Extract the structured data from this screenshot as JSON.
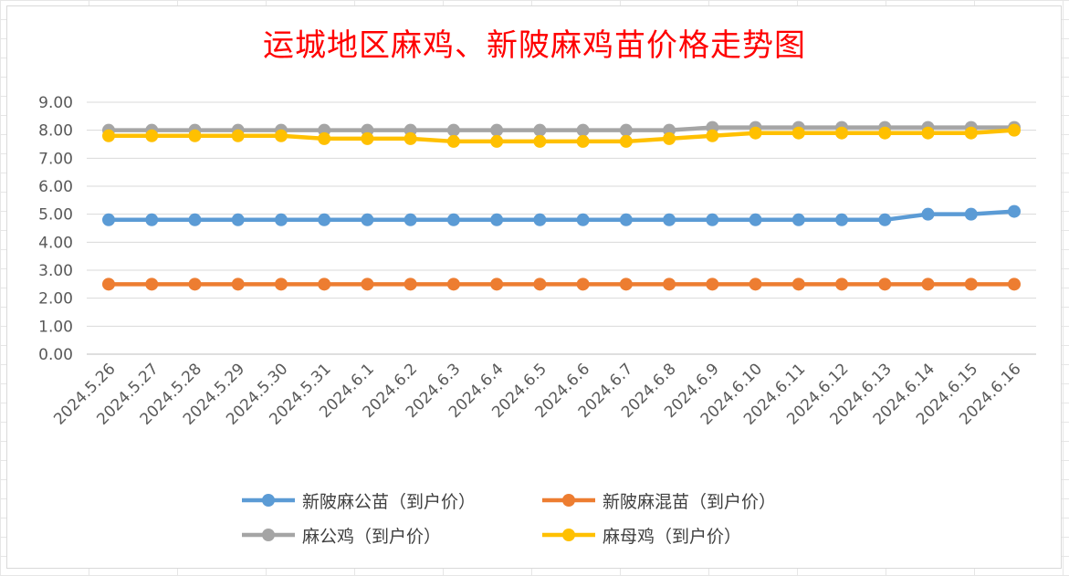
{
  "chart_data": {
    "type": "line",
    "title": "运城地区麻鸡、新陂麻鸡苗价格走势图",
    "xlabel": "",
    "ylabel": "",
    "ylim": [
      0,
      9
    ],
    "yticks": [
      "0.00",
      "1.00",
      "2.00",
      "3.00",
      "4.00",
      "5.00",
      "6.00",
      "7.00",
      "8.00",
      "9.00"
    ],
    "grid": true,
    "legend_position": "bottom",
    "categories": [
      "2024.5.26",
      "2024.5.27",
      "2024.5.28",
      "2024.5.29",
      "2024.5.30",
      "2024.5.31",
      "2024.6.1",
      "2024.6.2",
      "2024.6.3",
      "2024.6.4",
      "2024.6.5",
      "2024.6.6",
      "2024.6.7",
      "2024.6.8",
      "2024.6.9",
      "2024.6.10",
      "2024.6.11",
      "2024.6.12",
      "2024.6.13",
      "2024.6.14",
      "2024.6.15",
      "2024.6.16"
    ],
    "series": [
      {
        "name": "新陂麻公苗（到户价）",
        "color": "#5b9bd5",
        "values": [
          4.8,
          4.8,
          4.8,
          4.8,
          4.8,
          4.8,
          4.8,
          4.8,
          4.8,
          4.8,
          4.8,
          4.8,
          4.8,
          4.8,
          4.8,
          4.8,
          4.8,
          4.8,
          4.8,
          5.0,
          5.0,
          5.1
        ]
      },
      {
        "name": "新陂麻混苗（到户价）",
        "color": "#ed7d31",
        "values": [
          2.5,
          2.5,
          2.5,
          2.5,
          2.5,
          2.5,
          2.5,
          2.5,
          2.5,
          2.5,
          2.5,
          2.5,
          2.5,
          2.5,
          2.5,
          2.5,
          2.5,
          2.5,
          2.5,
          2.5,
          2.5,
          2.5
        ]
      },
      {
        "name": "麻公鸡（到户价）",
        "color": "#a5a5a5",
        "values": [
          8.0,
          8.0,
          8.0,
          8.0,
          8.0,
          8.0,
          8.0,
          8.0,
          8.0,
          8.0,
          8.0,
          8.0,
          8.0,
          8.0,
          8.1,
          8.1,
          8.1,
          8.1,
          8.1,
          8.1,
          8.1,
          8.1
        ]
      },
      {
        "name": "麻母鸡（到户价）",
        "color": "#ffc000",
        "values": [
          7.8,
          7.8,
          7.8,
          7.8,
          7.8,
          7.7,
          7.7,
          7.7,
          7.6,
          7.6,
          7.6,
          7.6,
          7.6,
          7.7,
          7.8,
          7.9,
          7.9,
          7.9,
          7.9,
          7.9,
          7.9,
          8.0
        ]
      }
    ]
  }
}
